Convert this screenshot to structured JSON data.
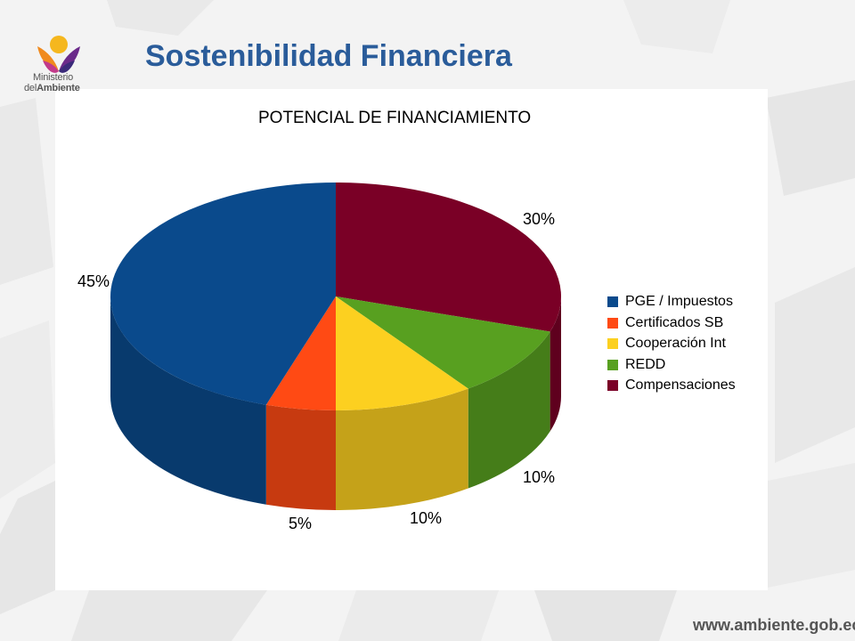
{
  "logo": {
    "line1": "Ministerio",
    "line2_prefix": "del",
    "line2_bold": "Ambiente"
  },
  "page_title": "Sostenibilidad Financiera",
  "footer_url": "www.ambiente.gob.ec",
  "chart_data": {
    "type": "pie",
    "title": "POTENCIAL DE FINANCIAMIENTO",
    "categories": [
      "PGE / Impuestos",
      "Certificados SB",
      "Cooperación Int",
      "REDD",
      "Compensaciones"
    ],
    "values": [
      45,
      5,
      10,
      10,
      30
    ],
    "data_labels": [
      "45%",
      "5%",
      "10%",
      "10%",
      "30%"
    ],
    "colors": [
      "#0a4a8c",
      "#ff4a14",
      "#fcd020",
      "#58a020",
      "#7a0026"
    ],
    "style": "3d",
    "legend_position": "right"
  }
}
